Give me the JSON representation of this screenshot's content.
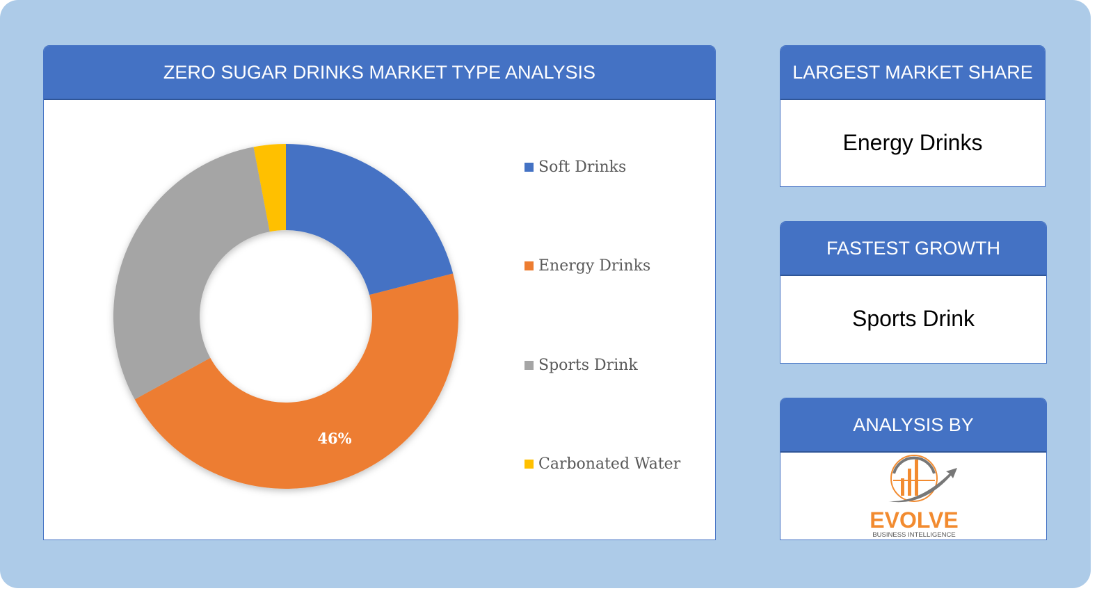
{
  "chart_panel": {
    "title": "ZERO SUGAR DRINKS MARKET TYPE ANALYSIS"
  },
  "chart_data": {
    "type": "pie",
    "variant": "donut",
    "categories": [
      "Soft Drinks",
      "Energy Drinks",
      "Sports Drink",
      "Carbonated Water"
    ],
    "values": [
      21,
      46,
      30,
      3
    ],
    "colors": [
      "#4472c4",
      "#ed7d31",
      "#a5a5a5",
      "#ffc000"
    ],
    "data_labels": [
      "",
      "46%",
      "",
      ""
    ],
    "legend": "right"
  },
  "cards": [
    {
      "title": "LARGEST MARKET SHARE",
      "value": "Energy Drinks"
    },
    {
      "title": "FASTEST GROWTH",
      "value": "Sports Drink"
    },
    {
      "title": "ANALYSIS BY",
      "logo_text": "EVOLVE",
      "logo_subtext": "BUSINESS INTELLIGENCE"
    }
  ]
}
